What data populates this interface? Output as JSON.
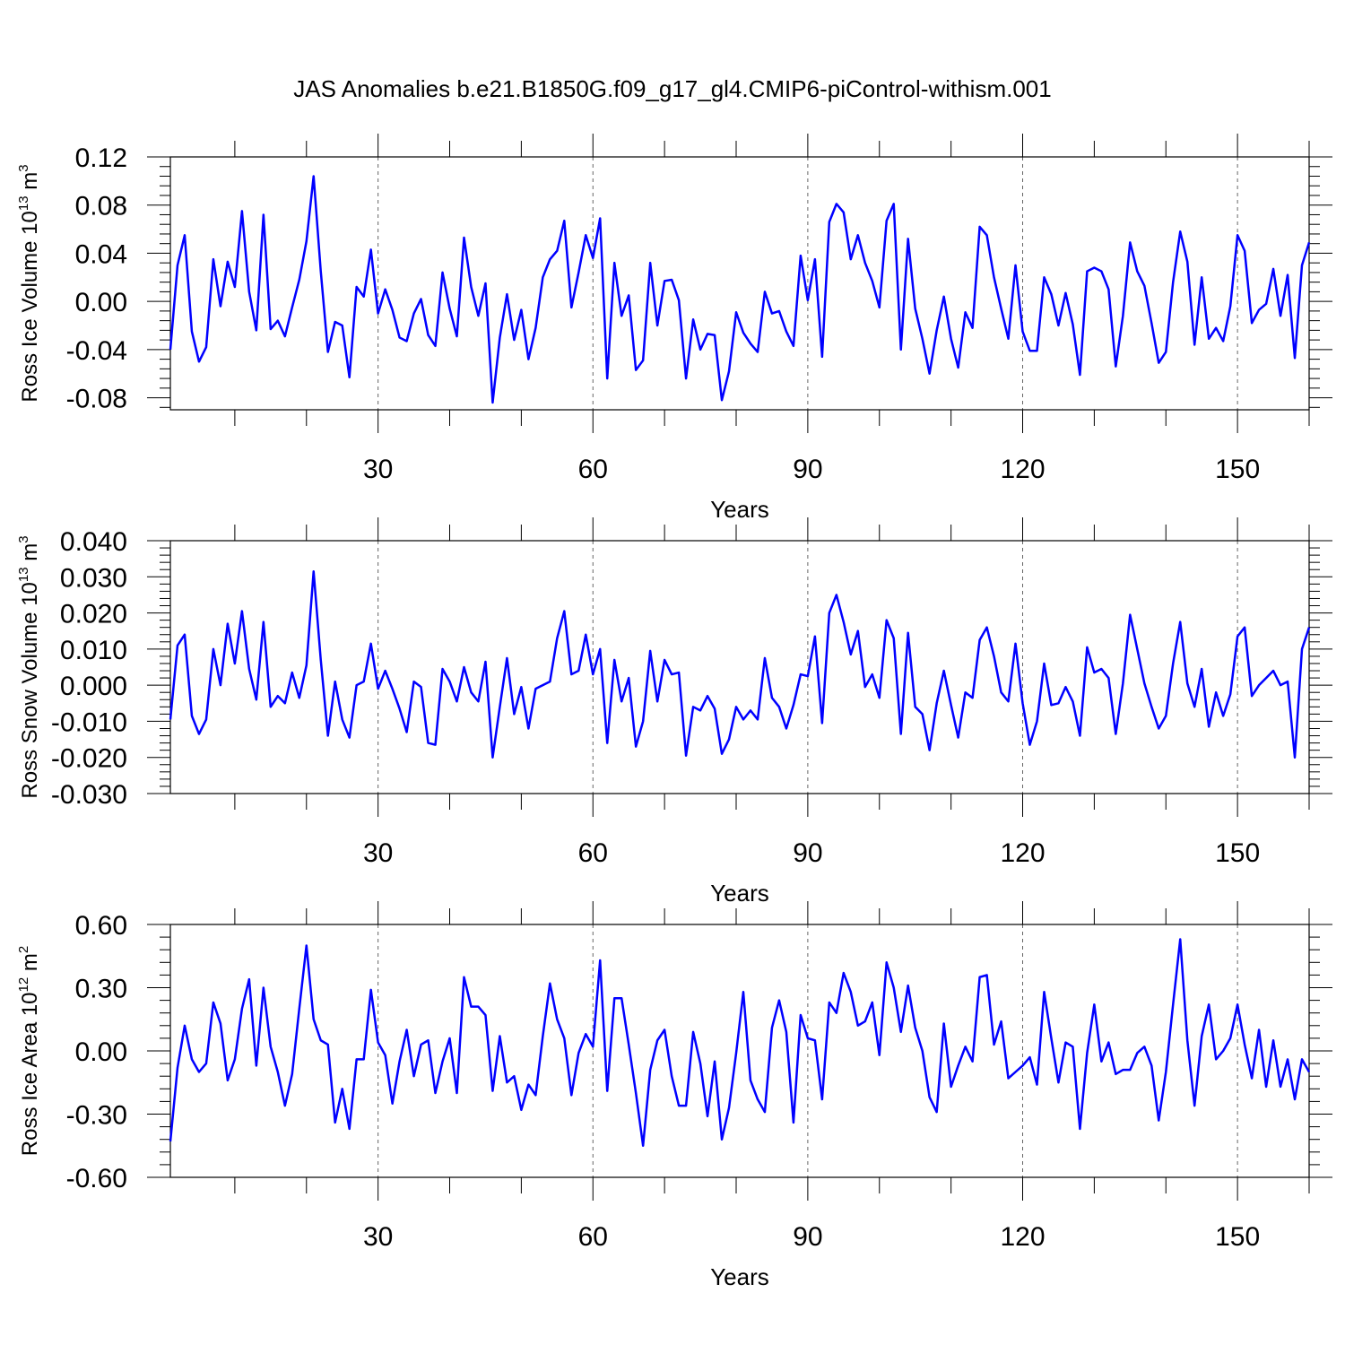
{
  "title": "JAS Anomalies b.e21.B1850G.f09_g17_gl4.CMIP6-piControl-withism.001",
  "chart_data": [
    {
      "type": "line",
      "ylabel": "Ross Ice Volume 10",
      "ylabel_exp": "13",
      "ylabel_unit": " m",
      "ylabel_unit_exp": "3",
      "xlabel": "Years",
      "xlim": [
        1,
        160
      ],
      "ylim": [
        -0.09,
        0.12
      ],
      "yticks": [
        -0.08,
        -0.04,
        0.0,
        0.04,
        0.08,
        0.12
      ],
      "ytick_labels": [
        "-0.08",
        "-0.04",
        "0.00",
        "0.04",
        "0.08",
        "0.12"
      ],
      "xticks": [
        30,
        60,
        90,
        120,
        150
      ],
      "xtick_labels": [
        "30",
        "60",
        "90",
        "120",
        "150"
      ],
      "grid": "vertical dashed at major x ticks",
      "line_color": "#0000ff",
      "values": [
        -0.04,
        0.03,
        0.055,
        -0.025,
        -0.05,
        -0.038,
        0.035,
        -0.004,
        0.033,
        0.012,
        0.075,
        0.008,
        -0.024,
        0.072,
        -0.023,
        -0.016,
        -0.029,
        -0.005,
        0.018,
        0.05,
        0.104,
        0.025,
        -0.042,
        -0.017,
        -0.02,
        -0.063,
        0.012,
        0.004,
        0.043,
        -0.01,
        0.01,
        -0.007,
        -0.03,
        -0.033,
        -0.01,
        0.002,
        -0.028,
        -0.037,
        0.024,
        -0.006,
        -0.029,
        0.053,
        0.012,
        -0.012,
        0.015,
        -0.084,
        -0.03,
        0.006,
        -0.032,
        -0.007,
        -0.048,
        -0.022,
        0.02,
        0.035,
        0.042,
        0.067,
        -0.005,
        0.024,
        0.055,
        0.036,
        0.069,
        -0.064,
        0.032,
        -0.012,
        0.005,
        -0.057,
        -0.049,
        0.032,
        -0.02,
        0.017,
        0.018,
        0.001,
        -0.064,
        -0.015,
        -0.04,
        -0.027,
        -0.028,
        -0.082,
        -0.058,
        -0.009,
        -0.026,
        -0.035,
        -0.042,
        0.008,
        -0.01,
        -0.008,
        -0.025,
        -0.037,
        0.038,
        0.001,
        0.035,
        -0.046,
        0.066,
        0.081,
        0.074,
        0.035,
        0.055,
        0.032,
        0.017,
        -0.005,
        0.067,
        0.081,
        -0.04,
        0.052,
        -0.006,
        -0.031,
        -0.06,
        -0.024,
        0.004,
        -0.031,
        -0.055,
        -0.009,
        -0.022,
        0.062,
        0.055,
        0.02,
        -0.006,
        -0.031,
        0.03,
        -0.025,
        -0.041,
        -0.041,
        0.02,
        0.006,
        -0.02,
        0.007,
        -0.019,
        -0.061,
        0.025,
        0.028,
        0.025,
        0.01,
        -0.054,
        -0.012,
        0.049,
        0.025,
        0.013,
        -0.018,
        -0.051,
        -0.042,
        0.016,
        0.058,
        0.033,
        -0.036,
        0.02,
        -0.031,
        -0.022,
        -0.033,
        -0.004,
        0.055,
        0.042,
        -0.018,
        -0.007,
        -0.002,
        0.027,
        -0.012,
        0.022,
        -0.047,
        0.03,
        0.049
      ]
    },
    {
      "type": "line",
      "ylabel": "Ross Snow Volume 10",
      "ylabel_exp": "13",
      "ylabel_unit": " m",
      "ylabel_unit_exp": "3",
      "xlabel": "Years",
      "xlim": [
        1,
        160
      ],
      "ylim": [
        -0.03,
        0.04
      ],
      "yticks": [
        -0.03,
        -0.02,
        -0.01,
        0.0,
        0.01,
        0.02,
        0.03,
        0.04
      ],
      "ytick_labels": [
        "-0.030",
        "-0.020",
        "-0.010",
        "0.000",
        "0.010",
        "0.020",
        "0.030",
        "0.040"
      ],
      "xticks": [
        30,
        60,
        90,
        120,
        150
      ],
      "xtick_labels": [
        "30",
        "60",
        "90",
        "120",
        "150"
      ],
      "grid": "vertical dashed at major x ticks",
      "line_color": "#0000ff",
      "values": [
        -0.0095,
        0.011,
        0.014,
        -0.0085,
        -0.0135,
        -0.0095,
        0.01,
        0.0,
        0.017,
        0.006,
        0.0205,
        0.0045,
        -0.004,
        0.0175,
        -0.006,
        -0.003,
        -0.005,
        0.0035,
        -0.0035,
        0.0055,
        0.0315,
        0.007,
        -0.014,
        0.001,
        -0.0095,
        -0.0145,
        0.0,
        0.001,
        0.0115,
        -0.001,
        0.004,
        -0.001,
        -0.0065,
        -0.013,
        0.001,
        -0.0005,
        -0.016,
        -0.0165,
        0.0045,
        0.001,
        -0.0045,
        0.005,
        -0.002,
        -0.0045,
        0.0065,
        -0.02,
        -0.006,
        0.0075,
        -0.008,
        -0.0005,
        -0.012,
        -0.001,
        0.0,
        0.001,
        0.013,
        0.0205,
        0.003,
        0.004,
        0.014,
        0.003,
        0.01,
        -0.016,
        0.007,
        -0.0045,
        0.002,
        -0.017,
        -0.01,
        0.0095,
        -0.0045,
        0.007,
        0.003,
        0.0035,
        -0.0195,
        -0.006,
        -0.007,
        -0.003,
        -0.0065,
        -0.019,
        -0.015,
        -0.006,
        -0.0095,
        -0.007,
        -0.0095,
        0.0075,
        -0.0035,
        -0.006,
        -0.012,
        -0.0055,
        0.003,
        0.0025,
        0.0135,
        -0.0105,
        0.02,
        0.025,
        0.0175,
        0.0085,
        0.015,
        -0.0005,
        0.003,
        -0.0035,
        0.018,
        0.013,
        -0.0135,
        0.0145,
        -0.006,
        -0.008,
        -0.018,
        -0.005,
        0.004,
        -0.0055,
        -0.0145,
        -0.002,
        -0.0035,
        0.0125,
        0.016,
        0.008,
        -0.002,
        -0.0045,
        0.0115,
        -0.005,
        -0.0165,
        -0.01,
        0.006,
        -0.0055,
        -0.005,
        -0.0005,
        -0.0045,
        -0.014,
        0.0105,
        0.0035,
        0.0045,
        0.002,
        -0.0135,
        0.0005,
        0.0195,
        0.01,
        0.0005,
        -0.006,
        -0.012,
        -0.0085,
        0.006,
        0.0175,
        0.0005,
        -0.006,
        0.0045,
        -0.0115,
        -0.002,
        -0.0085,
        -0.0025,
        0.0135,
        0.016,
        -0.003,
        0.0,
        0.002,
        0.004,
        0.0,
        0.001,
        -0.02,
        0.01,
        0.016
      ]
    },
    {
      "type": "line",
      "ylabel": "Ross Ice Area 10",
      "ylabel_exp": "12",
      "ylabel_unit": " m",
      "ylabel_unit_exp": "2",
      "xlabel": "Years",
      "xlim": [
        1,
        160
      ],
      "ylim": [
        -0.6,
        0.6
      ],
      "yticks": [
        -0.6,
        -0.3,
        0.0,
        0.3,
        0.6
      ],
      "ytick_labels": [
        "-0.60",
        "-0.30",
        "0.00",
        "0.30",
        "0.60"
      ],
      "xticks": [
        30,
        60,
        90,
        120,
        150
      ],
      "xtick_labels": [
        "30",
        "60",
        "90",
        "120",
        "150"
      ],
      "grid": "vertical dashed at major x ticks",
      "line_color": "#0000ff",
      "values": [
        -0.43,
        -0.08,
        0.12,
        -0.04,
        -0.1,
        -0.06,
        0.23,
        0.13,
        -0.14,
        -0.04,
        0.2,
        0.34,
        -0.07,
        0.3,
        0.02,
        -0.1,
        -0.26,
        -0.11,
        0.2,
        0.5,
        0.15,
        0.05,
        0.03,
        -0.34,
        -0.18,
        -0.37,
        -0.04,
        -0.04,
        0.29,
        0.04,
        -0.02,
        -0.25,
        -0.05,
        0.1,
        -0.12,
        0.03,
        0.05,
        -0.2,
        -0.05,
        0.06,
        -0.2,
        0.35,
        0.21,
        0.21,
        0.17,
        -0.19,
        0.07,
        -0.15,
        -0.12,
        -0.28,
        -0.16,
        -0.21,
        0.07,
        0.32,
        0.15,
        0.06,
        -0.21,
        -0.01,
        0.08,
        0.02,
        0.43,
        -0.19,
        0.25,
        0.25,
        0.03,
        -0.2,
        -0.45,
        -0.09,
        0.05,
        0.1,
        -0.12,
        -0.26,
        -0.26,
        0.09,
        -0.06,
        -0.31,
        -0.05,
        -0.42,
        -0.27,
        -0.01,
        0.28,
        -0.14,
        -0.23,
        -0.29,
        0.11,
        0.24,
        0.09,
        -0.34,
        0.17,
        0.06,
        0.05,
        -0.23,
        0.23,
        0.18,
        0.37,
        0.28,
        0.12,
        0.14,
        0.23,
        -0.02,
        0.42,
        0.3,
        0.09,
        0.31,
        0.11,
        0.0,
        -0.22,
        -0.29,
        0.13,
        -0.17,
        -0.07,
        0.02,
        -0.05,
        0.35,
        0.36,
        0.03,
        0.14,
        -0.13,
        -0.1,
        -0.07,
        -0.03,
        -0.16,
        0.28,
        0.06,
        -0.15,
        0.04,
        0.02,
        -0.37,
        -0.01,
        0.22,
        -0.05,
        0.04,
        -0.11,
        -0.09,
        -0.09,
        -0.01,
        0.02,
        -0.07,
        -0.33,
        -0.1,
        0.22,
        0.53,
        0.05,
        -0.26,
        0.07,
        0.22,
        -0.04,
        0.0,
        0.06,
        0.22,
        0.03,
        -0.13,
        0.1,
        -0.17,
        0.05,
        -0.17,
        -0.04,
        -0.23,
        -0.04,
        -0.1
      ]
    }
  ]
}
